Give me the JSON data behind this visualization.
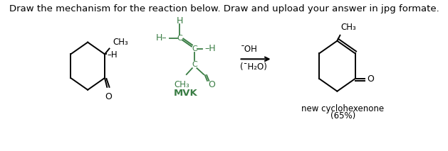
{
  "title_text": "Draw the mechanism for the reaction below. Draw and upload your answer in jpg formate.",
  "title_fontsize": 9.5,
  "title_color": "#000000",
  "bg_color": "#ffffff",
  "green_color": "#3a7d44",
  "black_color": "#000000",
  "arrow_label_top": "¯OH",
  "arrow_label_bottom": "(¯H₂O)",
  "mvk_label": "MVK",
  "product_label1": "new cyclohexenone",
  "product_label2": "(65%)"
}
